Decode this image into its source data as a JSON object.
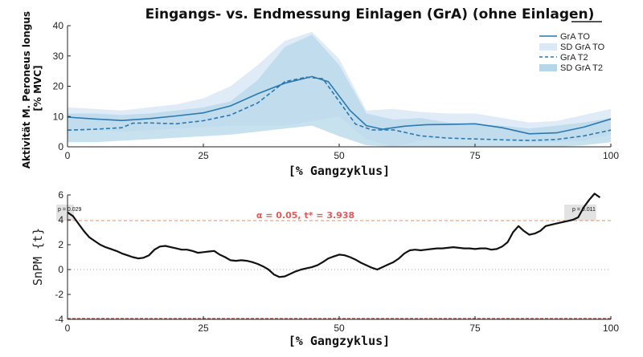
{
  "chart_data": [
    {
      "type": "line",
      "title": "Eingangs- vs. Endmessung Einlagen (GrA) (ohne Einlagen)",
      "xlabel": "[% Gangzyklus]",
      "ylabel": "Aktivität M. Peroneus longus [% MVC]",
      "xlim": [
        0,
        100
      ],
      "ylim": [
        0,
        40
      ],
      "xticks": [
        "0",
        "25",
        "50",
        "75",
        "100"
      ],
      "yticks": [
        "0",
        "10",
        "20",
        "30",
        "40"
      ],
      "grid": false,
      "legend_position": "top-right",
      "legend": [
        "GrA TO",
        "SD GrA TO",
        "GrA T2",
        "SD GrA T2"
      ],
      "series": [
        {
          "name": "GrA TO",
          "style": "solid",
          "color": "#2a79b2",
          "x": [
            0,
            5,
            10,
            15,
            20,
            25,
            30,
            35,
            40,
            45,
            48,
            52,
            55,
            58,
            62,
            66,
            70,
            75,
            80,
            85,
            90,
            95,
            100
          ],
          "y": [
            9.8,
            9.2,
            8.7,
            9.3,
            10.2,
            11.2,
            13.5,
            17.5,
            21,
            23.2,
            21.5,
            12,
            7,
            5.8,
            6.8,
            7.3,
            7.4,
            7.6,
            6.3,
            4.3,
            4.6,
            6.5,
            9.2
          ]
        },
        {
          "name": "SD GrA TO",
          "color": "#dbe9f6",
          "x": [
            0,
            5,
            10,
            15,
            20,
            25,
            30,
            35,
            40,
            45,
            50,
            55,
            60,
            65,
            70,
            75,
            80,
            85,
            90,
            95,
            100
          ],
          "upper": [
            13,
            12.5,
            12,
            13,
            14,
            16,
            20,
            27,
            35,
            38,
            29,
            12,
            12.5,
            11.5,
            11,
            11,
            9.5,
            8,
            8.5,
            10.5,
            12.5
          ],
          "lower": [
            5,
            5.5,
            5,
            5.5,
            6,
            6.5,
            7,
            7,
            7,
            8.5,
            10,
            2.5,
            0,
            2,
            3,
            3,
            2.5,
            1.5,
            1.5,
            2,
            4
          ]
        },
        {
          "name": "GrA T2",
          "style": "dashed",
          "color": "#2a79b2",
          "x": [
            0,
            5,
            10,
            12,
            15,
            20,
            25,
            30,
            35,
            40,
            44,
            47,
            50,
            53,
            56,
            60,
            65,
            70,
            75,
            80,
            85,
            90,
            95,
            100
          ],
          "y": [
            5.5,
            5.8,
            6.3,
            7.8,
            7.9,
            7.6,
            8.6,
            10.5,
            14.5,
            21.5,
            23,
            22.5,
            15,
            7.5,
            5.6,
            5.6,
            3.6,
            2.9,
            2.6,
            2.3,
            2.1,
            2.4,
            3.6,
            5.5
          ]
        },
        {
          "name": "SD GrA T2",
          "color": "#b6d7ea",
          "x": [
            0,
            5,
            10,
            15,
            20,
            25,
            30,
            35,
            40,
            45,
            50,
            55,
            60,
            65,
            70,
            75,
            80,
            85,
            90,
            95,
            100
          ],
          "upper": [
            11,
            11,
            10.5,
            11,
            12,
            13,
            15,
            22,
            33,
            37,
            27,
            11,
            9,
            9.5,
            8,
            7.5,
            7,
            6,
            7,
            8,
            9.5
          ],
          "lower": [
            1.5,
            1.5,
            2,
            2.5,
            3,
            3.5,
            4,
            5,
            6,
            7,
            3.5,
            0.5,
            0,
            0,
            0,
            0,
            0,
            0,
            0,
            0.5,
            1.5
          ]
        }
      ]
    },
    {
      "type": "line",
      "title": "",
      "xlabel": "[% Gangzyklus]",
      "ylabel": "SnPM {t}",
      "xlim": [
        0,
        100
      ],
      "ylim": [
        -4,
        6
      ],
      "xticks": [
        "0",
        "25",
        "50",
        "75",
        "100"
      ],
      "yticks": [
        "-4",
        "-2",
        "0",
        "2",
        "4",
        "6"
      ],
      "grid": false,
      "threshold": 3.938,
      "threshold_label": "α = 0.05, t* = 3.938",
      "clusters": [
        {
          "label": "p = 0.029",
          "x_start": 0,
          "x_end": 1.5
        },
        {
          "label": "p = 0.011",
          "x_start": 93.5,
          "x_end": 98.5
        }
      ],
      "series": [
        {
          "name": "",
          "color": "#111111",
          "x": [
            0,
            1,
            2,
            3,
            4,
            5,
            6,
            7,
            8,
            9,
            10,
            11,
            12,
            13,
            14,
            15,
            16,
            17,
            18,
            19,
            20,
            21,
            22,
            23,
            24,
            25,
            26,
            27,
            28,
            29,
            30,
            31,
            32,
            33,
            34,
            35,
            36,
            37,
            38,
            39,
            40,
            41,
            42,
            43,
            44,
            45,
            46,
            47,
            48,
            49,
            50,
            51,
            52,
            53,
            54,
            55,
            56,
            57,
            58,
            59,
            60,
            61,
            62,
            63,
            64,
            65,
            66,
            67,
            68,
            69,
            70,
            71,
            72,
            73,
            74,
            75,
            76,
            77,
            78,
            79,
            80,
            81,
            82,
            83,
            84,
            85,
            86,
            87,
            88,
            89,
            90,
            91,
            92,
            93,
            94,
            95,
            96,
            97,
            98
          ],
          "y": [
            4.6,
            4.3,
            3.7,
            3.1,
            2.6,
            2.3,
            2.0,
            1.8,
            1.65,
            1.5,
            1.3,
            1.15,
            1.0,
            0.9,
            0.95,
            1.15,
            1.6,
            1.85,
            1.9,
            1.8,
            1.7,
            1.6,
            1.6,
            1.5,
            1.35,
            1.4,
            1.45,
            1.5,
            1.2,
            1.0,
            0.75,
            0.7,
            0.75,
            0.7,
            0.6,
            0.45,
            0.25,
            0.0,
            -0.4,
            -0.6,
            -0.55,
            -0.35,
            -0.15,
            0.0,
            0.1,
            0.2,
            0.35,
            0.6,
            0.9,
            1.05,
            1.2,
            1.15,
            1.0,
            0.8,
            0.55,
            0.35,
            0.15,
            0.0,
            0.2,
            0.4,
            0.6,
            0.9,
            1.3,
            1.55,
            1.6,
            1.55,
            1.6,
            1.65,
            1.7,
            1.7,
            1.75,
            1.8,
            1.75,
            1.7,
            1.7,
            1.65,
            1.7,
            1.7,
            1.6,
            1.65,
            1.85,
            2.2,
            3.0,
            3.5,
            3.1,
            2.8,
            2.9,
            3.1,
            3.5,
            3.6,
            3.7,
            3.8,
            3.9,
            4.0,
            4.2,
            5.0,
            5.6,
            6.1,
            5.8
          ]
        }
      ]
    }
  ]
}
